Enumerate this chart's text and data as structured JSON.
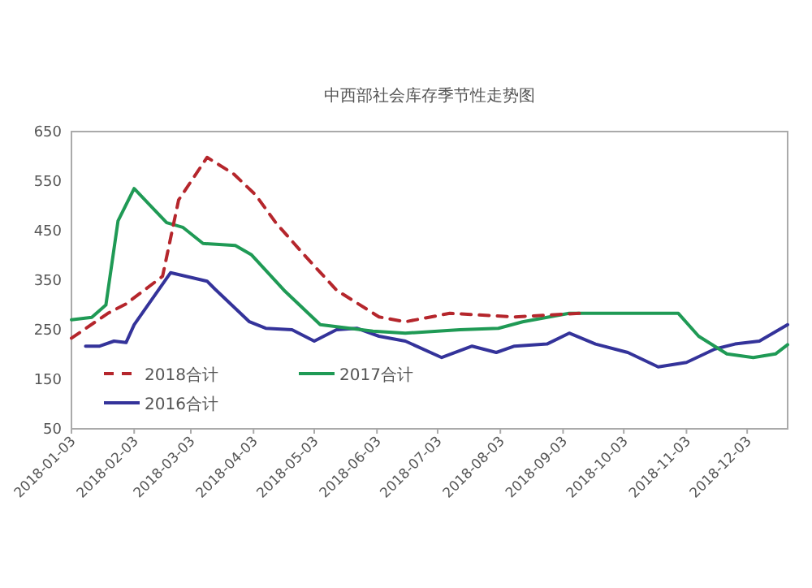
{
  "chart_data": {
    "type": "line",
    "title": "中西部社会库存季节性走势图",
    "xlim": [
      "2018-01-03",
      "2018-12-23"
    ],
    "ylim": [
      50,
      650
    ],
    "yticks": [
      50,
      150,
      250,
      350,
      450,
      550,
      650
    ],
    "xticks": [
      "2018-01-03",
      "2018-02-03",
      "2018-03-03",
      "2018-04-03",
      "2018-05-03",
      "2018-06-03",
      "2018-07-03",
      "2018-08-03",
      "2018-09-03",
      "2018-10-03",
      "2018-11-03",
      "2018-12-03"
    ],
    "legend": "bottom left",
    "series": [
      {
        "name": "2018合计",
        "color": "#b5262c",
        "line_style": "dashed",
        "x": [
          "2018-01-03",
          "2018-01-21",
          "2018-01-30",
          "2018-02-17",
          "2018-02-25",
          "2018-03-11",
          "2018-03-24",
          "2018-04-04",
          "2018-04-14",
          "2018-04-28",
          "2018-05-14",
          "2018-06-04",
          "2018-06-17",
          "2018-07-09",
          "2018-08-10",
          "2018-09-11"
        ],
        "values": [
          233,
          283,
          302,
          358,
          512,
          598,
          565,
          522,
          466,
          401,
          330,
          276,
          266,
          283,
          276,
          283
        ]
      },
      {
        "name": "2017合计",
        "color": "#1f9a55",
        "line_style": "solid",
        "x": [
          "2018-01-03",
          "2018-01-13",
          "2018-01-20",
          "2018-01-26",
          "2018-02-03",
          "2018-02-19",
          "2018-02-27",
          "2018-03-09",
          "2018-03-25",
          "2018-04-02",
          "2018-04-18",
          "2018-05-06",
          "2018-06-01",
          "2018-06-17",
          "2018-07-14",
          "2018-08-02",
          "2018-08-14",
          "2018-09-06",
          "2018-10-30",
          "2018-11-09",
          "2018-11-23",
          "2018-12-06",
          "2018-12-17",
          "2018-12-23"
        ],
        "values": [
          270,
          275,
          300,
          470,
          535,
          466,
          457,
          424,
          420,
          401,
          330,
          260,
          247,
          243,
          250,
          253,
          266,
          283,
          283,
          237,
          201,
          194,
          201,
          220
        ]
      },
      {
        "name": "2016合计",
        "color": "#34339a",
        "line_style": "solid",
        "x": [
          "2018-01-10",
          "2018-01-17",
          "2018-01-24",
          "2018-01-30",
          "2018-02-03",
          "2018-02-21",
          "2018-03-11",
          "2018-03-15",
          "2018-04-01",
          "2018-04-09",
          "2018-04-22",
          "2018-05-03",
          "2018-05-14",
          "2018-05-24",
          "2018-06-04",
          "2018-06-17",
          "2018-07-05",
          "2018-07-20",
          "2018-08-01",
          "2018-08-10",
          "2018-08-26",
          "2018-09-06",
          "2018-09-19",
          "2018-10-05",
          "2018-10-20",
          "2018-11-03",
          "2018-11-17",
          "2018-11-27",
          "2018-12-09",
          "2018-12-23"
        ],
        "values": [
          217,
          217,
          227,
          224,
          260,
          365,
          348,
          332,
          266,
          253,
          250,
          227,
          250,
          253,
          237,
          227,
          194,
          217,
          204,
          217,
          221,
          243,
          221,
          204,
          175,
          184,
          211,
          221,
          227,
          260
        ]
      }
    ]
  }
}
